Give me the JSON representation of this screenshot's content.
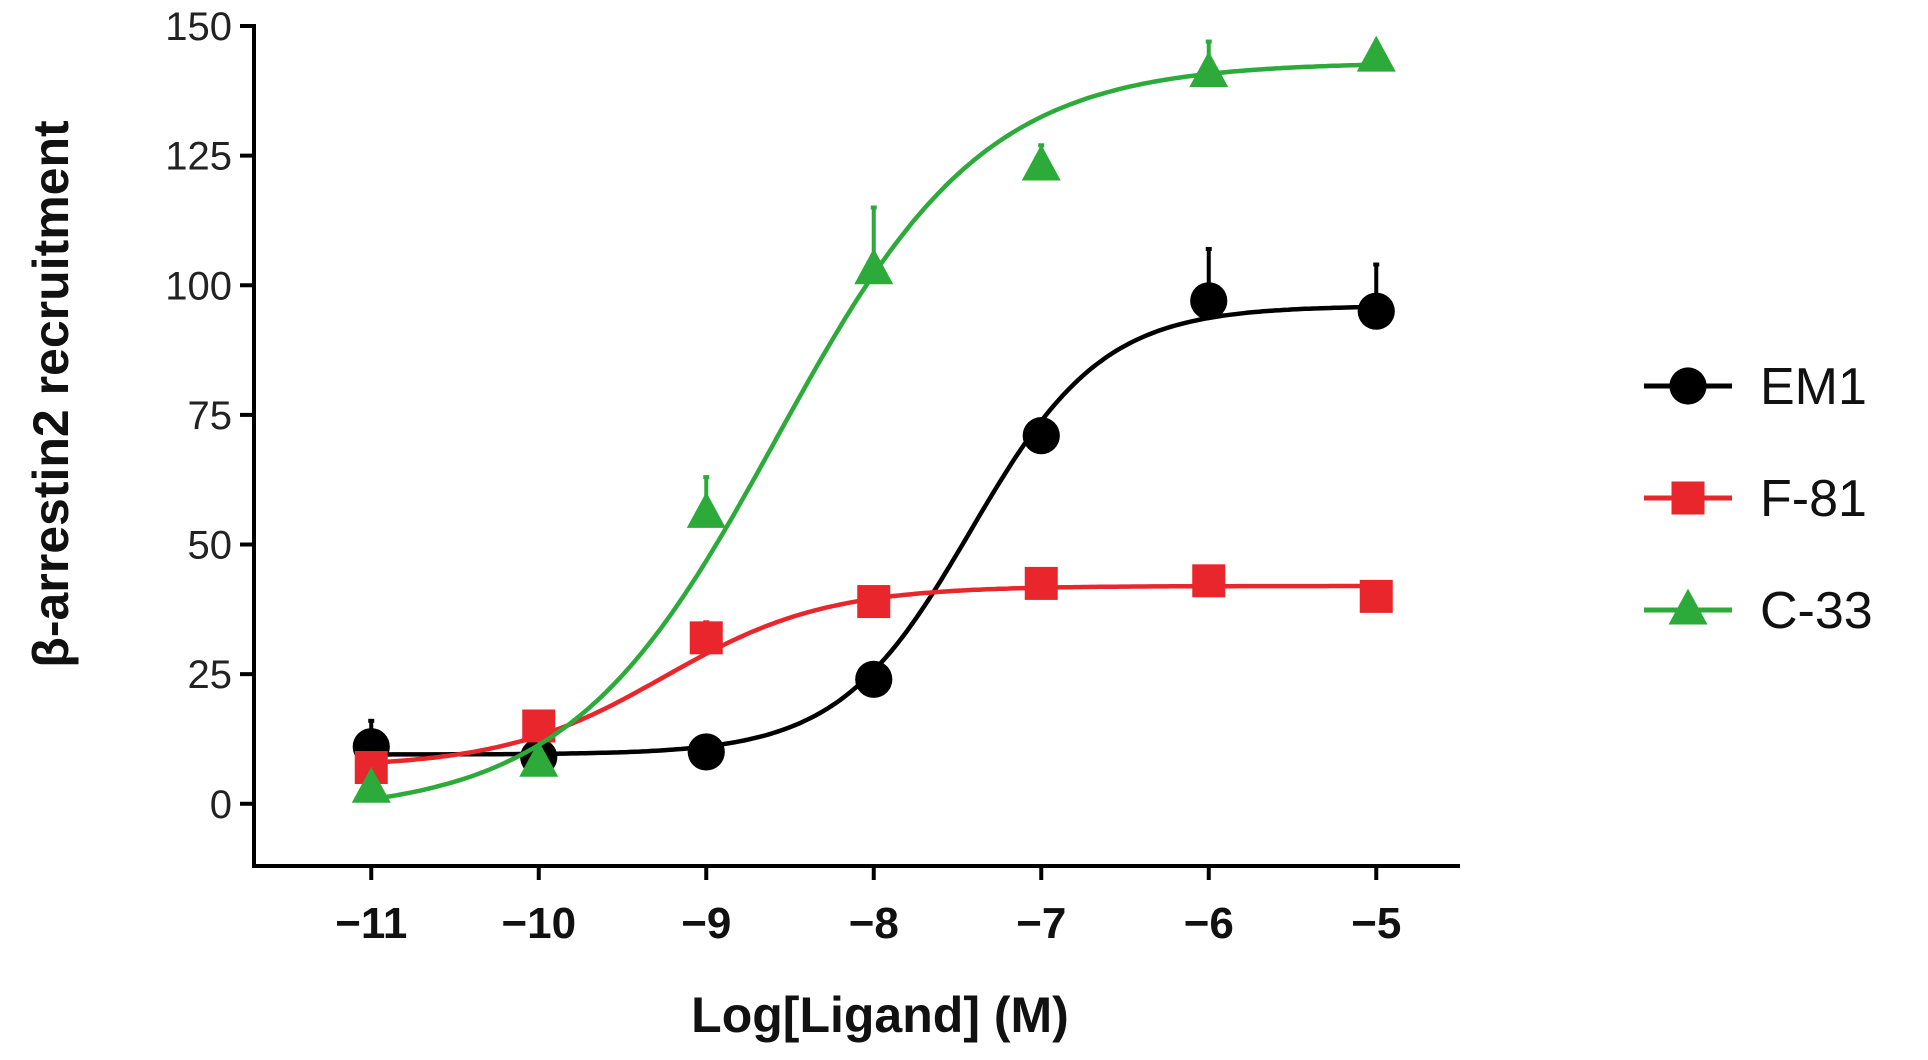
{
  "chart_data": {
    "type": "line",
    "xlabel": "Log[Ligand] (M)",
    "ylabel": "β-arrestin2 recruitment",
    "xlim": [
      -11.7,
      -4.5
    ],
    "ylim": [
      -12,
      150
    ],
    "x_ticks": [
      -11,
      -10,
      -9,
      -8,
      -7,
      -6,
      -5
    ],
    "x_tick_labels": [
      "−11",
      "−10",
      "−9",
      "−8",
      "−7",
      "−6",
      "−5"
    ],
    "y_ticks": [
      0,
      25,
      50,
      75,
      100,
      125,
      150
    ],
    "y_tick_labels": [
      "0",
      "25",
      "50",
      "75",
      "100",
      "125",
      "150"
    ],
    "grid": false,
    "legend_position": "right",
    "series": [
      {
        "name": "EM1",
        "color": "#000000",
        "marker": "circle",
        "x": [
          -11,
          -10,
          -9,
          -8,
          -7,
          -6,
          -5
        ],
        "y": [
          11,
          9,
          10,
          24,
          71,
          97,
          95
        ],
        "error": [
          5,
          0,
          0,
          0,
          0,
          10,
          9
        ],
        "fit": {
          "bottom": 9.5,
          "top": 96,
          "logEC50": -7.42,
          "hill": 1.1
        }
      },
      {
        "name": "F-81",
        "color": "#e8262b",
        "marker": "square",
        "x": [
          -11,
          -10,
          -9,
          -8,
          -7,
          -6,
          -5
        ],
        "y": [
          7,
          15,
          32,
          39,
          42.5,
          43,
          40
        ],
        "error": [
          0,
          0,
          3,
          0,
          0,
          0,
          0
        ],
        "fit": {
          "bottom": 7,
          "top": 42,
          "logEC50": -9.25,
          "hill": 0.9
        }
      },
      {
        "name": "C-33",
        "color": "#2caa3a",
        "marker": "triangle",
        "x": [
          -11,
          -10,
          -9,
          -8,
          -7,
          -6,
          -5
        ],
        "y": [
          3,
          8,
          56,
          103,
          123,
          141,
          144
        ],
        "error": [
          0,
          0,
          7,
          12,
          4,
          6,
          0
        ],
        "fit": {
          "bottom": -2,
          "top": 143,
          "logEC50": -8.58,
          "hill": 0.7
        }
      }
    ]
  }
}
